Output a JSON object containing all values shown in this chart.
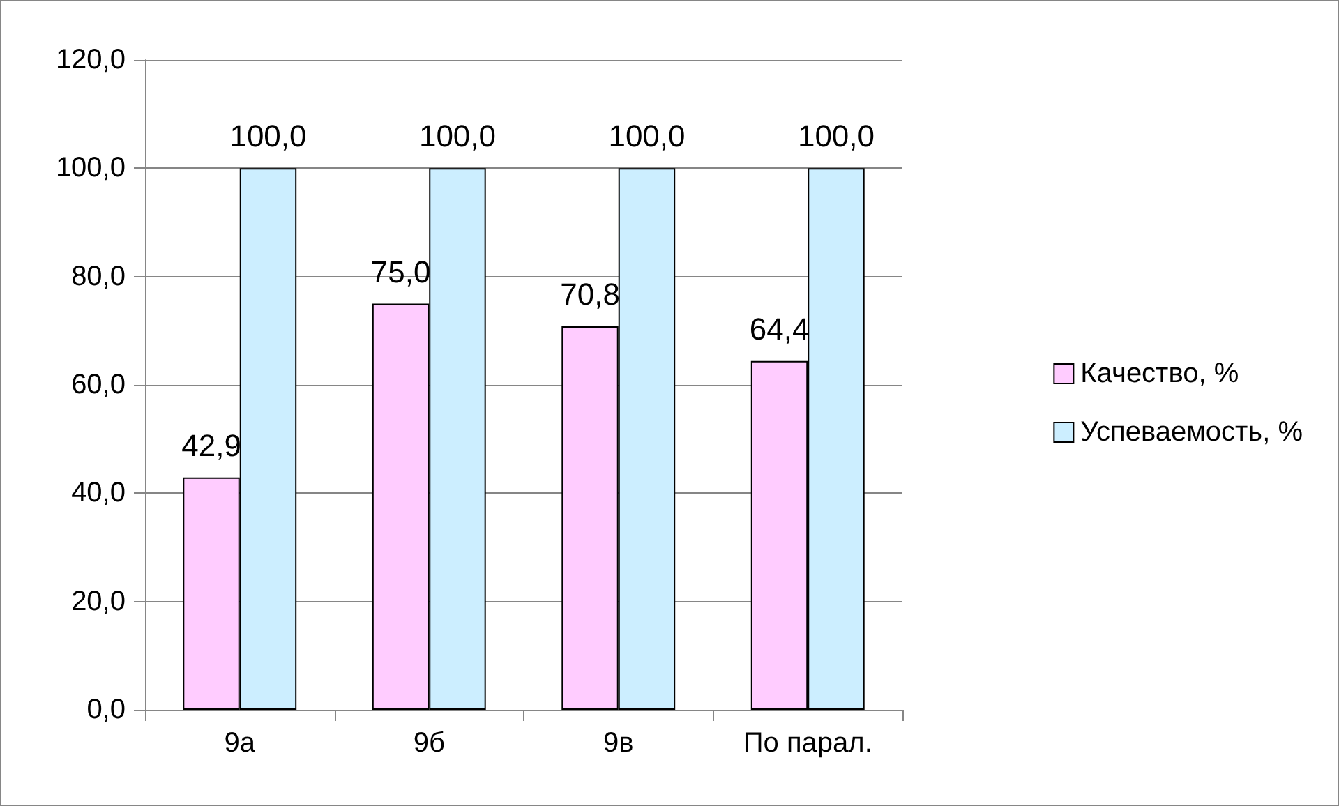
{
  "chart_data": {
    "type": "bar",
    "categories": [
      "9а",
      "9б",
      "9в",
      "По парал."
    ],
    "series": [
      {
        "name": "Качество, %",
        "color": "#ffccff",
        "values": [
          42.9,
          75.0,
          70.8,
          64.4
        ],
        "value_labels": [
          "42,9",
          "75,0",
          "70,8",
          "64,4"
        ]
      },
      {
        "name": "Успеваемость, %",
        "color": "#cceeff",
        "values": [
          100.0,
          100.0,
          100.0,
          100.0
        ],
        "value_labels": [
          "100,0",
          "100,0",
          "100,0",
          "100,0"
        ]
      }
    ],
    "ylim": [
      0,
      120
    ],
    "yticks": [
      {
        "value": 0,
        "label": "0,0"
      },
      {
        "value": 20,
        "label": "20,0"
      },
      {
        "value": 40,
        "label": "40,0"
      },
      {
        "value": 60,
        "label": "60,0"
      },
      {
        "value": 80,
        "label": "80,0"
      },
      {
        "value": 100,
        "label": "100,0"
      },
      {
        "value": 120,
        "label": "120,0"
      }
    ],
    "grid": "y",
    "legend": "right"
  }
}
